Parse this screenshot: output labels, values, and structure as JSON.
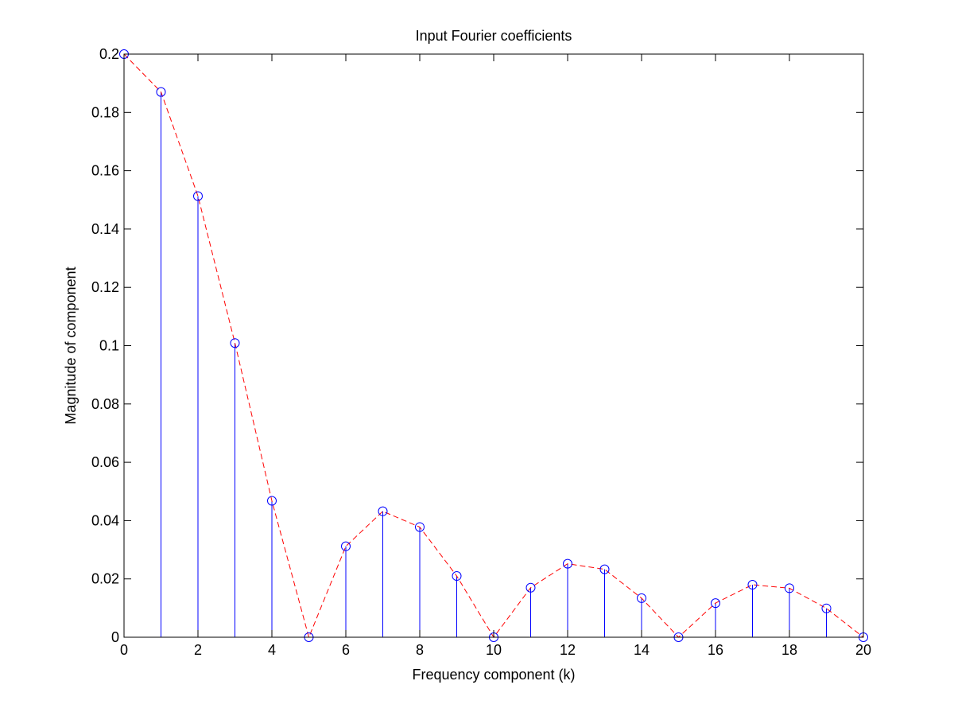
{
  "colors": {
    "background": "#ffffff",
    "axes": "#000000",
    "stem": "#0000ff",
    "marker": "#0000ff",
    "envelope": "#ff0000"
  },
  "chart_data": {
    "type": "stem",
    "title": "Input Fourier coefficients",
    "xlabel": "Frequency component (k)",
    "ylabel": "Magnitude of component",
    "xlim": [
      0,
      20
    ],
    "ylim": [
      0,
      0.2
    ],
    "xticks": [
      0,
      2,
      4,
      6,
      8,
      10,
      12,
      14,
      16,
      18,
      20
    ],
    "xtick_labels": [
      "0",
      "2",
      "4",
      "6",
      "8",
      "10",
      "12",
      "14",
      "16",
      "18",
      "20"
    ],
    "yticks": [
      0,
      0.02,
      0.04,
      0.06,
      0.08,
      0.1,
      0.12,
      0.14,
      0.16,
      0.18,
      0.2
    ],
    "ytick_labels": [
      "0",
      "0.02",
      "0.04",
      "0.06",
      "0.08",
      "0.1",
      "0.12",
      "0.14",
      "0.16",
      "0.18",
      "0.2"
    ],
    "grid": false,
    "series": [
      {
        "style": "stem-circle-markers",
        "x": [
          0,
          1,
          2,
          3,
          4,
          5,
          6,
          7,
          8,
          9,
          10,
          11,
          12,
          13,
          14,
          15,
          16,
          17,
          18,
          19,
          20
        ],
        "y": [
          0.2,
          0.187,
          0.1513,
          0.1009,
          0.0468,
          0.0,
          0.0312,
          0.0432,
          0.0378,
          0.021,
          0.0,
          0.017,
          0.0252,
          0.0233,
          0.0134,
          0.0,
          0.0117,
          0.018,
          0.0168,
          0.0099,
          0.0
        ]
      },
      {
        "style": "dashed-line",
        "x": [
          0,
          1,
          2,
          3,
          4,
          5,
          6,
          7,
          8,
          9,
          10,
          11,
          12,
          13,
          14,
          15,
          16,
          17,
          18,
          19,
          20
        ],
        "y": [
          0.2,
          0.187,
          0.1513,
          0.1009,
          0.0468,
          0.0,
          0.0312,
          0.0432,
          0.0378,
          0.021,
          0.0,
          0.017,
          0.0252,
          0.0233,
          0.0134,
          0.0,
          0.0117,
          0.018,
          0.0168,
          0.0099,
          0.0
        ]
      }
    ]
  }
}
